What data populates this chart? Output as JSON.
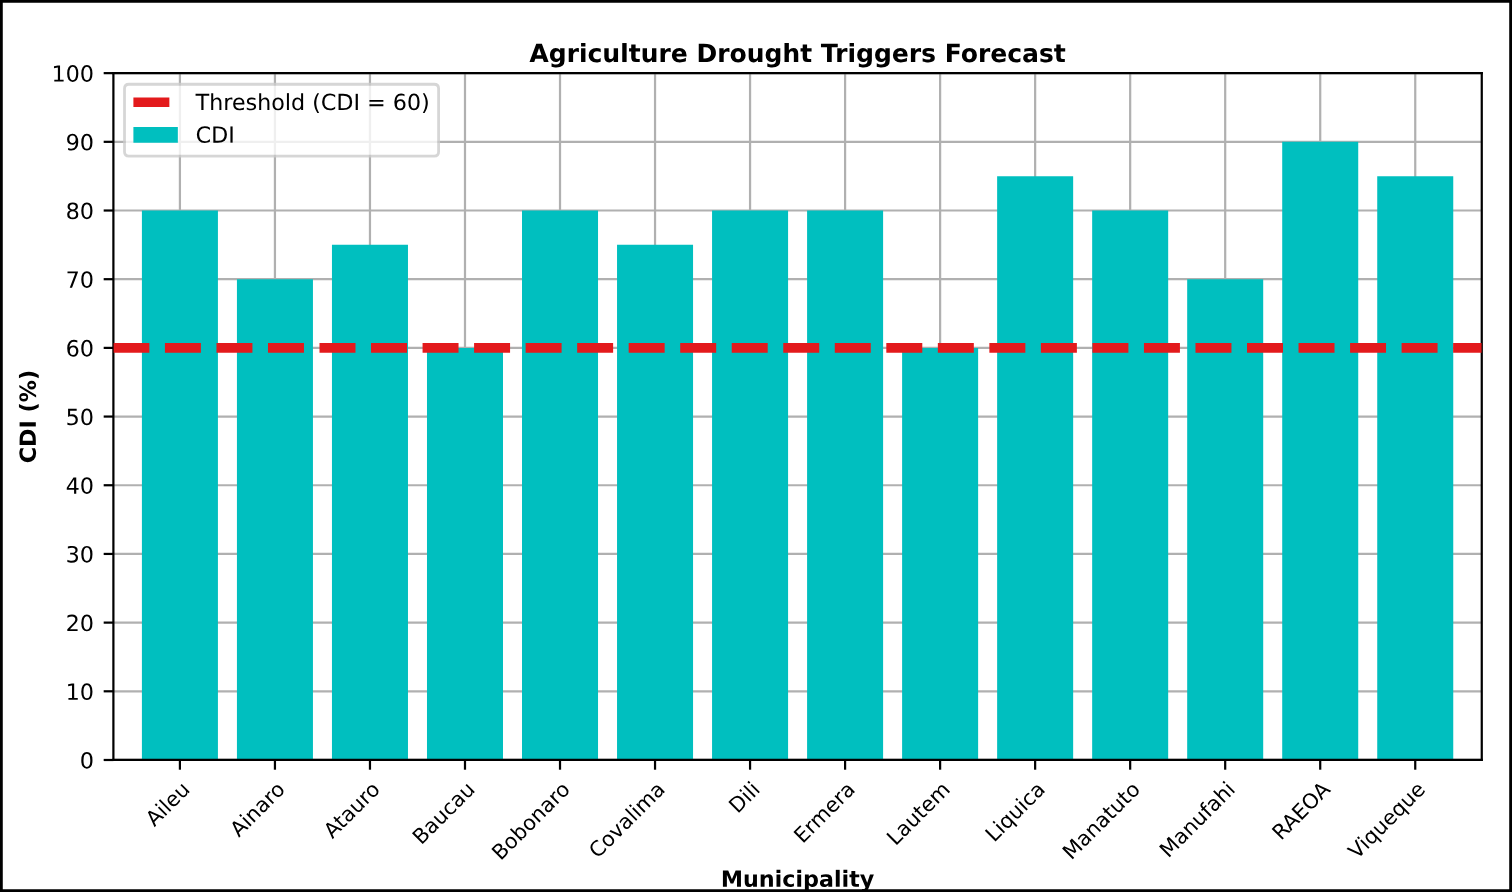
{
  "chart_data": {
    "type": "bar",
    "title": "Agriculture Drought Triggers Forecast",
    "xlabel": "Municipality",
    "ylabel": "CDI (%)",
    "categories": [
      "Aileu",
      "Ainaro",
      "Atauro",
      "Baucau",
      "Bobonaro",
      "Covalima",
      "Dili",
      "Ermera",
      "Lautem",
      "Liquica",
      "Manatuto",
      "Manufahi",
      "RAEOA",
      "Viqueque"
    ],
    "series": [
      {
        "name": "CDI",
        "color": "#00bfbf",
        "values": [
          80,
          70,
          75,
          60,
          80,
          75,
          80,
          80,
          60,
          85,
          80,
          70,
          90,
          85
        ]
      }
    ],
    "ref_lines": [
      {
        "axis": "y",
        "value": 60,
        "label": "Threshold (CDI = 60)",
        "color": "#e31a1c",
        "line_style": "dashed"
      }
    ],
    "ylim": [
      0,
      100
    ],
    "yticks": [
      0,
      10,
      20,
      30,
      40,
      50,
      60,
      70,
      80,
      90,
      100
    ],
    "grid": true,
    "legend": "top left"
  }
}
